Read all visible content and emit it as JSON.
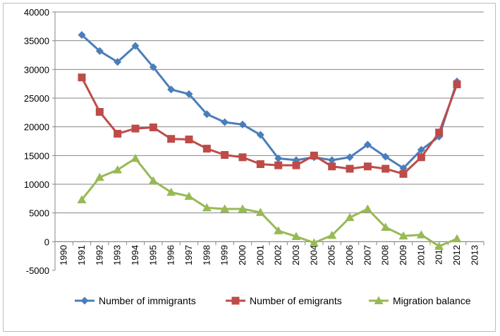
{
  "chart_data": {
    "type": "line",
    "title": "",
    "xlabel": "",
    "ylabel": "",
    "ylim": [
      -5000,
      40000
    ],
    "y_ticks": [
      40000,
      35000,
      30000,
      25000,
      20000,
      15000,
      10000,
      5000,
      0,
      -5000
    ],
    "categories": [
      "1990",
      "1991",
      "1992",
      "1993",
      "1994",
      "1995",
      "1996",
      "1997",
      "1998",
      "1999",
      "2000",
      "2001",
      "2002",
      "2003",
      "2004",
      "2005",
      "2006",
      "2007",
      "2008",
      "2009",
      "2010",
      "2011",
      "2012",
      "2013"
    ],
    "grid": "horizontal",
    "legend_position": "bottom",
    "series": [
      {
        "name": "Number of immigrants",
        "color": "#4a7ebb",
        "marker": "diamond",
        "values": [
          null,
          36000,
          33200,
          31300,
          34100,
          30400,
          26500,
          25700,
          22200,
          20800,
          20400,
          18600,
          14500,
          14200,
          14700,
          14200,
          14700,
          16900,
          14800,
          12800,
          16000,
          18300,
          27900,
          null
        ]
      },
      {
        "name": "Number of emigrants",
        "color": "#be4b48",
        "marker": "square",
        "values": [
          null,
          28600,
          22600,
          18800,
          19700,
          19900,
          17900,
          17800,
          16200,
          15100,
          14700,
          13500,
          13300,
          13300,
          15000,
          13100,
          12700,
          13100,
          12700,
          11800,
          14700,
          19000,
          27400,
          null
        ]
      },
      {
        "name": "Migration balance",
        "color": "#98b954",
        "marker": "triangle",
        "values": [
          null,
          7300,
          11200,
          12500,
          14500,
          10600,
          8600,
          7900,
          5900,
          5700,
          5700,
          5100,
          1900,
          900,
          -200,
          1100,
          4200,
          5700,
          2500,
          1000,
          1200,
          -800,
          500,
          null
        ]
      }
    ]
  }
}
